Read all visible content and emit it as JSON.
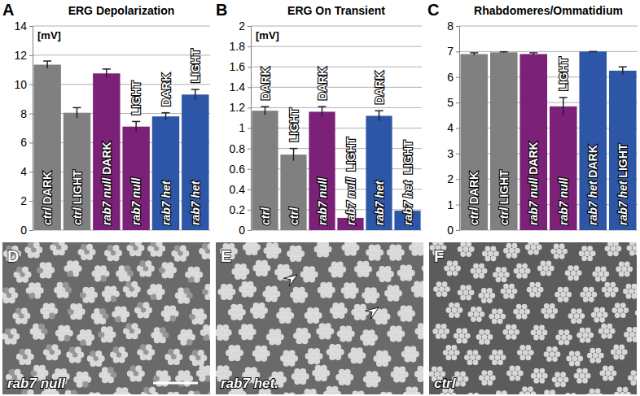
{
  "chart_data": [
    {
      "type": "bar",
      "panel": "A",
      "title": "ERG Depolarization",
      "y_label": "[mV]",
      "categories": [
        "ctrl DARK",
        "ctrl LIGHT",
        "rab7 null DARK",
        "rab7 null",
        "rab7 het",
        "rab7 het"
      ],
      "top_labels": [
        null,
        null,
        null,
        "LIGHT",
        "DARK",
        "LIGHT"
      ],
      "values": [
        11.35,
        8.05,
        10.75,
        7.1,
        7.8,
        9.3
      ],
      "errors": [
        0.25,
        0.35,
        0.3,
        0.35,
        0.25,
        0.35
      ],
      "colors": [
        "#808080",
        "#808080",
        "#7b2178",
        "#7b2178",
        "#2e56a6",
        "#2e56a6"
      ],
      "ylim": [
        0,
        14
      ],
      "yticks": [
        0,
        2,
        4,
        6,
        8,
        10,
        12,
        14
      ],
      "grid": true
    },
    {
      "type": "bar",
      "panel": "B",
      "title": "ERG On Transient",
      "y_label": "[mV]",
      "categories": [
        "ctrl",
        "ctrl",
        "rab7 null",
        "rab7 null",
        "rab7 het",
        "rab7 het"
      ],
      "top_labels": [
        "DARK",
        "LIGHT",
        "DARK",
        "LIGHT",
        "DARK",
        "LIGHT"
      ],
      "values": [
        1.17,
        0.74,
        1.16,
        0.12,
        1.12,
        0.19
      ],
      "errors": [
        0.04,
        0.06,
        0.05,
        0.04,
        0.05,
        0.06
      ],
      "colors": [
        "#808080",
        "#808080",
        "#7b2178",
        "#7b2178",
        "#2e56a6",
        "#2e56a6"
      ],
      "ylim": [
        0,
        2
      ],
      "yticks": [
        0,
        0.2,
        0.4,
        0.6,
        0.8,
        1,
        1.2,
        1.4,
        1.6,
        1.8,
        2
      ],
      "grid": true
    },
    {
      "type": "bar",
      "panel": "C",
      "title": "Rhabdomeres/Ommatidium",
      "categories": [
        "ctrl DARK",
        "ctrl LIGHT",
        "rab7 null DARK",
        "rab7 null",
        "rab7 het DARK",
        "rab7 het LIGHT"
      ],
      "top_labels": [
        null,
        null,
        null,
        "LIGHT",
        null,
        null
      ],
      "values": [
        6.9,
        6.97,
        6.9,
        4.85,
        7.0,
        6.25
      ],
      "errors": [
        0.05,
        0.02,
        0.05,
        0.35,
        0,
        0.15
      ],
      "colors": [
        "#808080",
        "#808080",
        "#7b2178",
        "#7b2178",
        "#2e56a6",
        "#2e56a6"
      ],
      "ylim": [
        0,
        8
      ],
      "yticks": [
        0,
        1,
        2,
        3,
        4,
        5,
        6,
        7,
        8
      ],
      "grid": true
    }
  ],
  "images": [
    {
      "panel": "D",
      "label": "rab7 null"
    },
    {
      "panel": "E",
      "label": "rab7 het."
    },
    {
      "panel": "F",
      "label": "ctrl"
    }
  ]
}
